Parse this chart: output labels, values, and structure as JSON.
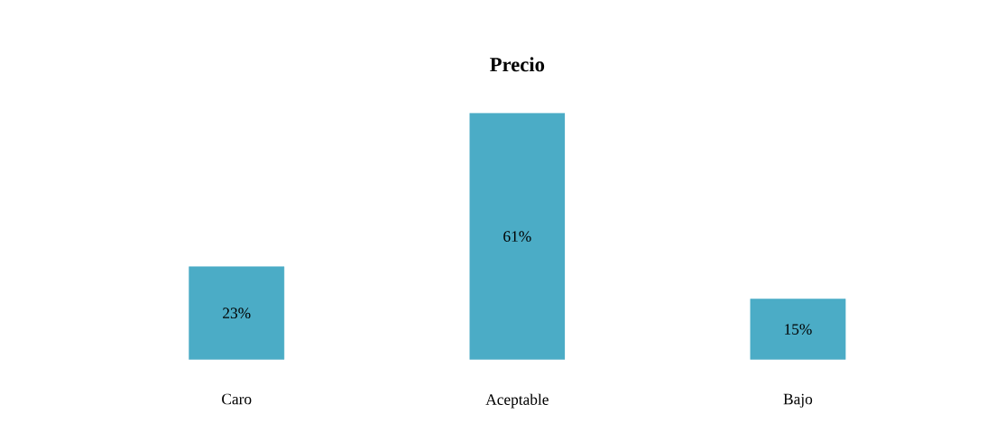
{
  "chart_data": {
    "type": "bar",
    "title": "Precio",
    "categories": [
      "Caro",
      "Aceptable",
      "Bajo"
    ],
    "values": [
      23,
      61,
      15
    ],
    "value_labels": [
      "23%",
      "61%",
      "15%"
    ],
    "color": "#4bacc6"
  }
}
